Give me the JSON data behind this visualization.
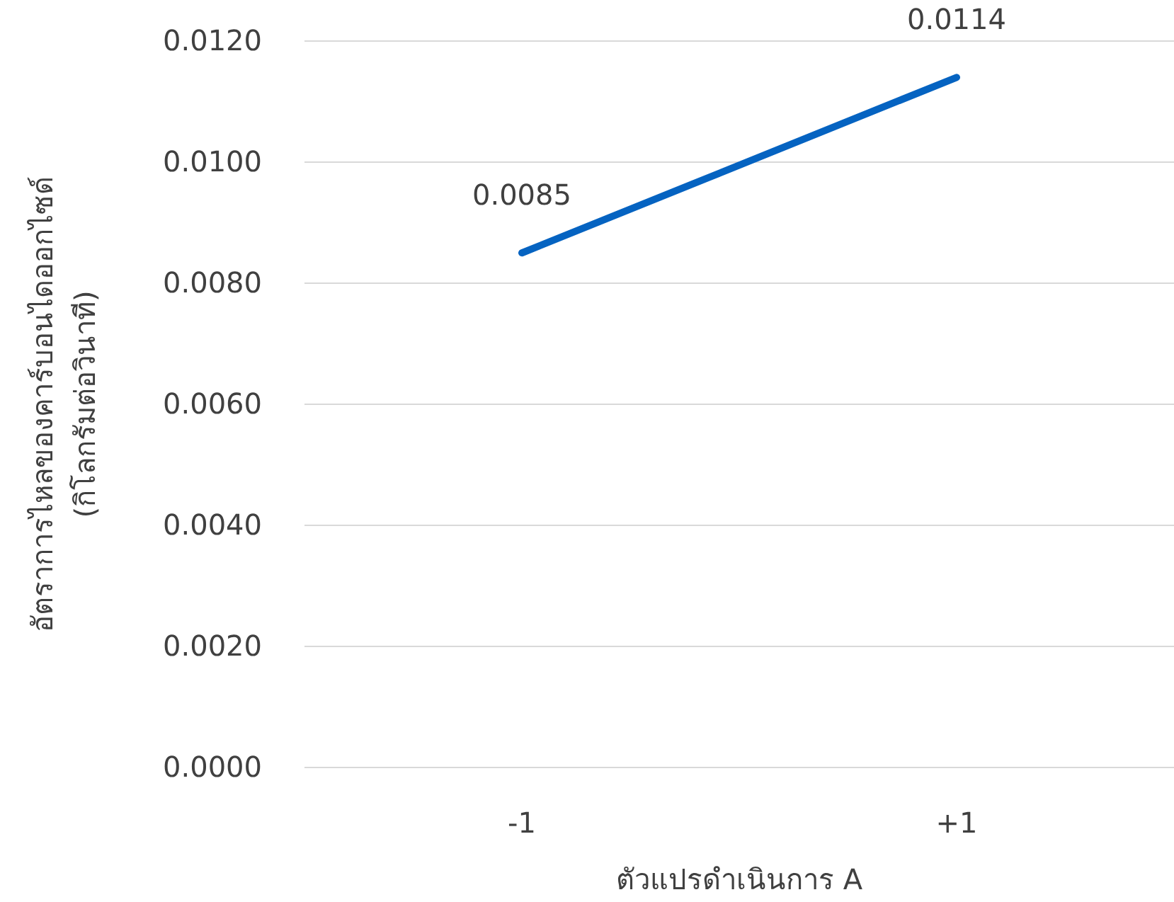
{
  "chart_data": {
    "type": "line",
    "xlabel": "ตัวแปรดำเนินการ A",
    "ylabel": "อัตราการไหลของคาร์บอนไดออกไซด์\n(กิโลกรัมต่อวินาที)",
    "categories": [
      "-1",
      "+1"
    ],
    "series": [
      {
        "color": "#0563c1",
        "values": [
          0.0085,
          0.0114
        ]
      }
    ],
    "ylim": [
      0,
      0.012
    ],
    "yticks": [
      {
        "value": 0,
        "label": "0.0000"
      },
      {
        "value": 0.002,
        "label": "0.0020"
      },
      {
        "value": 0.004,
        "label": "0.0040"
      },
      {
        "value": 0.006,
        "label": "0.0060"
      },
      {
        "value": 0.008,
        "label": "0.0080"
      },
      {
        "value": 0.01,
        "label": "0.0100"
      },
      {
        "value": 0.012,
        "label": "0.0120"
      }
    ],
    "grid": "y",
    "data_labels": true,
    "marker": "none",
    "line_style": "solid"
  }
}
